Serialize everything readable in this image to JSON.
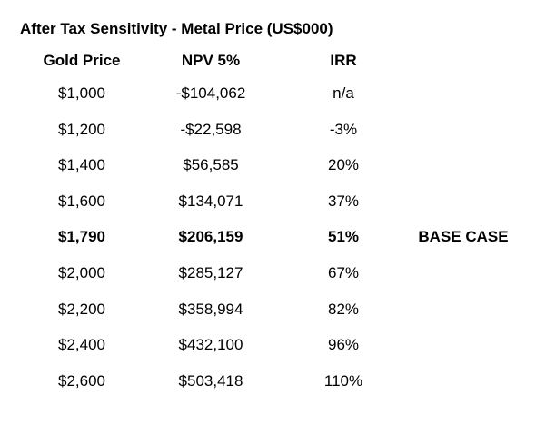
{
  "title": "After Tax Sensitivity - Metal Price (US$000)",
  "table": {
    "headers": [
      "Gold Price",
      "NPV 5%",
      "IRR"
    ],
    "rows": [
      [
        "$1,000",
        "-$104,062",
        "n/a"
      ],
      [
        "$1,200",
        "-$22,598",
        "-3%"
      ],
      [
        "$1,400",
        "$56,585",
        "20%"
      ],
      [
        "$1,600",
        "$134,071",
        "37%"
      ],
      [
        "$1,790",
        "$206,159",
        "51%",
        "BASE CASE"
      ],
      [
        "$2,000",
        "$285,127",
        "67%"
      ],
      [
        "$2,200",
        "$358,994",
        "82%"
      ],
      [
        "$2,400",
        "$432,100",
        "96%"
      ],
      [
        "$2,600",
        "$503,418",
        "110%"
      ]
    ]
  }
}
